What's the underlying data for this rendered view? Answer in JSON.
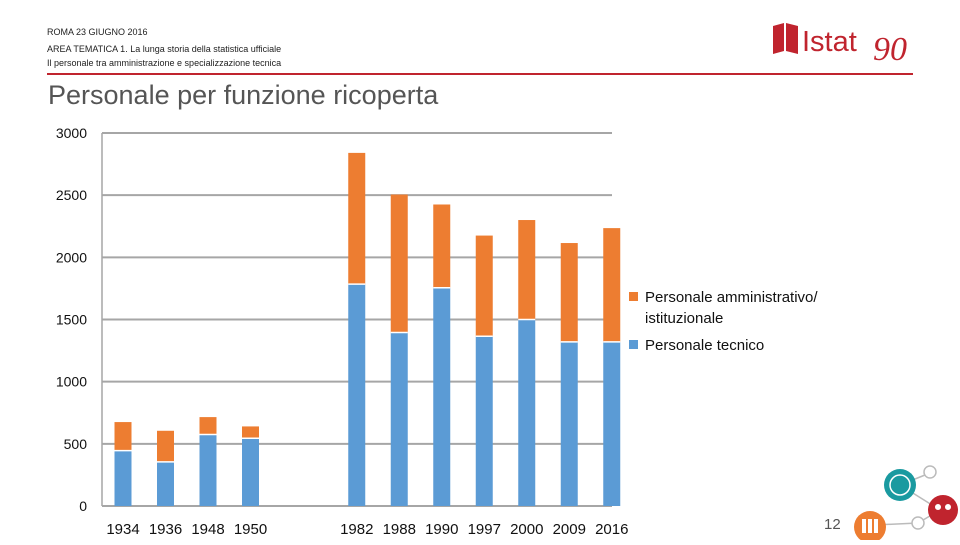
{
  "header": {
    "line1": "ROMA 23 GIUGNO 2016",
    "line2": "AREA TEMATICA 1. La lunga storia della statistica ufficiale",
    "line3": "Il personale tra amministrazione e specializzazione tecnica"
  },
  "logo": {
    "text": "Istat",
    "number": "90"
  },
  "page_number": "12",
  "colors": {
    "tecnico": "#5b9bd5",
    "amministrativo": "#ed7d31",
    "accent": "#c0242e"
  },
  "chart_data": {
    "type": "bar",
    "stacked": true,
    "title": "Personale per funzione ricoperta",
    "categories": [
      "1934",
      "1936",
      "1948",
      "1950",
      "1982",
      "1988",
      "1990",
      "1997",
      "2000",
      "2009",
      "2016"
    ],
    "series": [
      {
        "name": "Personale tecnico",
        "values": [
          445,
          355,
          575,
          545,
          1785,
          1395,
          1755,
          1365,
          1500,
          1320,
          1320
        ]
      },
      {
        "name": "Personale amministrativo/ istituzionale",
        "values": [
          230,
          250,
          140,
          95,
          1055,
          1110,
          670,
          810,
          800,
          795,
          915
        ]
      }
    ],
    "ylim": [
      0,
      3000
    ],
    "yticks": [
      "0",
      "500",
      "1000",
      "1500",
      "2000",
      "2500",
      "3000"
    ],
    "grid": true,
    "legend_position": "right"
  }
}
